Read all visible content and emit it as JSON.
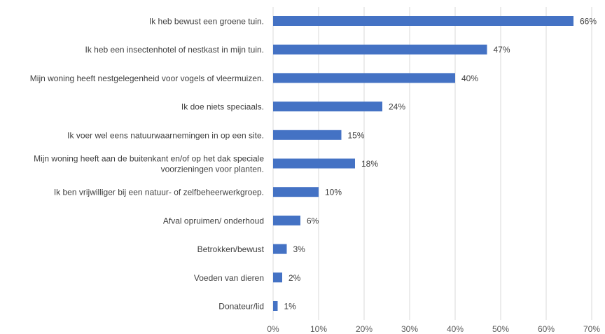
{
  "chart_data": {
    "type": "bar",
    "orientation": "horizontal",
    "categories": [
      [
        "Ik heb bewust een groene tuin."
      ],
      [
        "Ik heb een insectenhotel of nestkast in mijn tuin."
      ],
      [
        "Mijn woning heeft nestgelegenheid voor vogels of vleermuizen."
      ],
      [
        "Ik doe niets speciaals."
      ],
      [
        "Ik voer wel eens natuurwaarnemingen in op een site."
      ],
      [
        "Mijn woning heeft aan de buitenkant en/of op het dak speciale",
        "voorzieningen voor planten."
      ],
      [
        "Ik ben vrijwilliger bij een natuur- of zelfbeheerwerkgroep."
      ],
      [
        "Afval opruimen/ onderhoud"
      ],
      [
        "Betrokken/bewust"
      ],
      [
        "Voeden van dieren"
      ],
      [
        "Donateur/lid"
      ]
    ],
    "values": [
      66,
      47,
      40,
      24,
      15,
      18,
      10,
      6,
      3,
      2,
      1
    ],
    "value_labels": [
      "66%",
      "47%",
      "40%",
      "24%",
      "15%",
      "18%",
      "10%",
      "6%",
      "3%",
      "2%",
      "1%"
    ],
    "xlim": [
      0,
      70
    ],
    "x_ticks": [
      0,
      10,
      20,
      30,
      40,
      50,
      60,
      70
    ],
    "x_tick_labels": [
      "0%",
      "10%",
      "20%",
      "30%",
      "40%",
      "50%",
      "60%",
      "70%"
    ],
    "grid": true,
    "legend": false,
    "bar_color": "#4472C4",
    "grid_color": "#d9d9d9",
    "text_color": "#404040"
  }
}
